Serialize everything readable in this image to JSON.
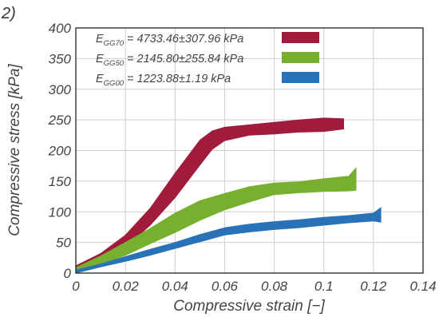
{
  "panel_label": "2)",
  "chart_data": {
    "type": "area",
    "xlabel": "Compressive strain [−]",
    "ylabel": "Compressive stress [kPa]",
    "xlim": [
      0,
      0.14
    ],
    "ylim": [
      0,
      400
    ],
    "xticks": [
      "0",
      "0.02",
      "0.04",
      "0.06",
      "0.08",
      "0.1",
      "0.12",
      "0.14"
    ],
    "yticks": [
      "0",
      "50",
      "100",
      "150",
      "200",
      "250",
      "300",
      "350",
      "400"
    ],
    "grid": true,
    "legend_position": "top-left",
    "series": [
      {
        "name": "GG70",
        "legend": {
          "prefix": "E",
          "sub": "GG70",
          "suffix": " = 4733.46±307.96 kPa"
        },
        "color": "#a01b3c",
        "x": [
          0,
          0.01,
          0.02,
          0.03,
          0.04,
          0.05,
          0.055,
          0.06,
          0.07,
          0.08,
          0.09,
          0.1,
          0.108
        ],
        "upper": [
          12,
          32,
          62,
          106,
          163,
          217,
          232,
          238,
          242,
          246,
          250,
          253,
          252
        ],
        "lower": [
          3,
          20,
          42,
          78,
          123,
          176,
          202,
          216,
          225,
          227,
          230,
          231,
          235
        ]
      },
      {
        "name": "GG50",
        "legend": {
          "prefix": "E",
          "sub": "GG50",
          "suffix": " = 2145.80±255.84 kPa"
        },
        "color": "#77b02e",
        "x": [
          0,
          0.01,
          0.02,
          0.03,
          0.04,
          0.05,
          0.06,
          0.07,
          0.08,
          0.09,
          0.1,
          0.11,
          0.113
        ],
        "upper": [
          9,
          28,
          50,
          73,
          98,
          118,
          130,
          141,
          147,
          149,
          154,
          158,
          172
        ],
        "lower": [
          3,
          14,
          29,
          48,
          66,
          86,
          103,
          116,
          128,
          131,
          133,
          134,
          135
        ]
      },
      {
        "name": "GG00",
        "legend": {
          "prefix": "E",
          "sub": "GG00",
          "suffix": " = 1223.88±1.19 kPa"
        },
        "color": "#2a72b8",
        "x": [
          0,
          0.01,
          0.02,
          0.03,
          0.04,
          0.05,
          0.06,
          0.07,
          0.08,
          0.09,
          0.1,
          0.11,
          0.12,
          0.123
        ],
        "upper": [
          5,
          15,
          27,
          39,
          50,
          63,
          74,
          80,
          84,
          87,
          91,
          94,
          98,
          107
        ],
        "lower": [
          0,
          10,
          19,
          29,
          40,
          51,
          62,
          67,
          71,
          74,
          78,
          82,
          85,
          83
        ]
      }
    ]
  }
}
